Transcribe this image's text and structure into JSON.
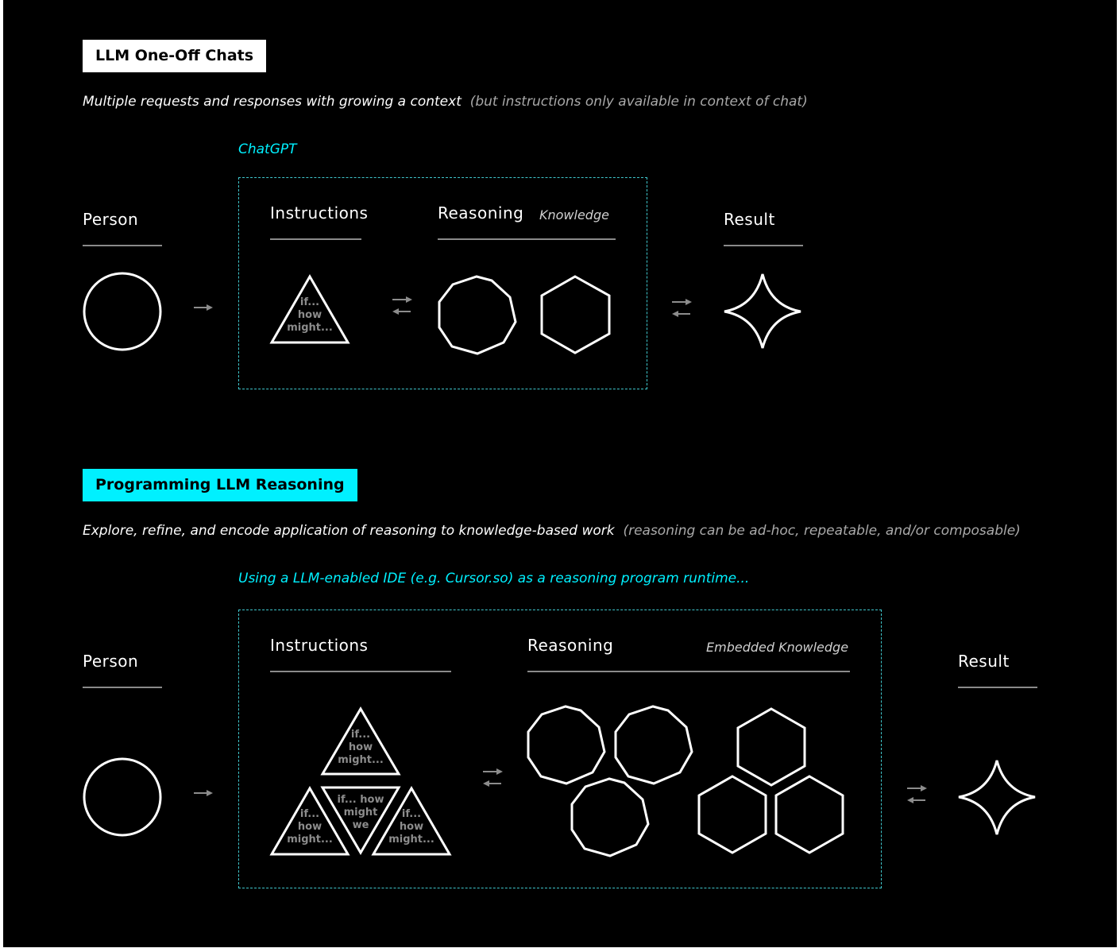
{
  "colors": {
    "background": "#000000",
    "cyan": "#00f0ff",
    "dashed_border": "#3fc6cc",
    "stroke": "#ffffff",
    "arrow": "#8c8c8c",
    "muted_text": "#a9a9a9"
  },
  "section1": {
    "badge": "LLM One-Off Chats",
    "subtitle_main": "Multiple requests and responses with growing a context",
    "subtitle_note": "(but instructions only available in context of chat)",
    "caption": "ChatGPT",
    "person_label": "Person",
    "instructions_label": "Instructions",
    "reasoning_label": "Reasoning",
    "knowledge_note": "Knowledge",
    "result_label": "Result",
    "triangle": {
      "line1": "if...",
      "line2": "how",
      "line3": "might..."
    }
  },
  "section2": {
    "badge": "Programming LLM Reasoning",
    "subtitle_main": "Explore, refine, and encode application of reasoning to knowledge-based work",
    "subtitle_note": "(reasoning can be ad-hoc, repeatable, and/or composable)",
    "caption": "Using a LLM-enabled IDE (e.g. Cursor.so) as a reasoning program runtime...",
    "person_label": "Person",
    "instructions_label": "Instructions",
    "reasoning_label": "Reasoning",
    "knowledge_note": "Embedded Knowledge",
    "result_label": "Result",
    "triangle_top": {
      "line1": "if...",
      "line2": "how",
      "line3": "might..."
    },
    "triangle_left": {
      "line1": "if...",
      "line2": "how",
      "line3": "might..."
    },
    "triangle_center": {
      "line1": "if... how",
      "line2": "might",
      "line3": "we"
    },
    "triangle_right": {
      "line1": "if...",
      "line2": "how",
      "line3": "might..."
    }
  }
}
